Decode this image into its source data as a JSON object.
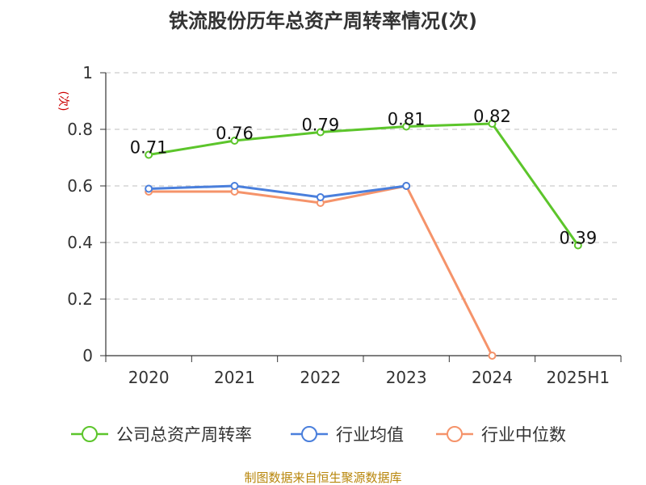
{
  "chart_data": {
    "type": "line",
    "title": "铁流股份历年总资产周转率情况(次)",
    "ylabel": "(次)",
    "xlabel": "",
    "categories": [
      "2020",
      "2021",
      "2022",
      "2023",
      "2024",
      "2025H1"
    ],
    "ylim": [
      0,
      1
    ],
    "yticks": [
      0,
      0.2,
      0.4,
      0.6,
      0.8,
      1
    ],
    "ytick_labels": [
      "0",
      "0.2",
      "0.4",
      "0.6",
      "0.8",
      "1"
    ],
    "grid": true,
    "legend_position": "bottom",
    "series": [
      {
        "name": "公司总资产周转率",
        "color": "#5cc52b",
        "values": [
          0.71,
          0.76,
          0.79,
          0.81,
          0.82,
          0.39
        ],
        "labels": [
          "0.71",
          "0.76",
          "0.79",
          "0.81",
          "0.82",
          "0.39"
        ],
        "show_labels": true
      },
      {
        "name": "行业均值",
        "color": "#4a7fdc",
        "values": [
          0.59,
          0.6,
          0.56,
          0.6,
          null,
          null
        ],
        "show_labels": false
      },
      {
        "name": "行业中位数",
        "color": "#f5936a",
        "values": [
          0.58,
          0.58,
          0.54,
          0.6,
          0,
          null
        ],
        "show_labels": false
      }
    ]
  },
  "source": "制图数据来自恒生聚源数据库"
}
